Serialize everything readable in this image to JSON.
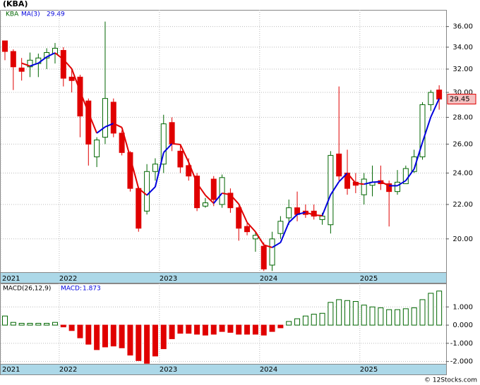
{
  "chart_data": [
    {
      "type": "candlestick",
      "title": "(KBA)",
      "name": "KBA",
      "up_color": "#006600",
      "down_color": "#e00000",
      "categories": [
        "2021",
        null,
        null,
        null,
        null,
        null,
        null,
        "2022",
        null,
        null,
        null,
        null,
        null,
        null,
        null,
        null,
        null,
        null,
        null,
        "2023",
        null,
        null,
        null,
        null,
        null,
        null,
        null,
        null,
        null,
        null,
        null,
        "2024",
        null,
        null,
        null,
        null,
        null,
        null,
        null,
        null,
        null,
        null,
        null,
        "2025",
        null,
        null,
        null,
        null,
        null,
        null,
        null,
        null,
        null
      ],
      "open": [
        34.6,
        33.6,
        32.1,
        32.2,
        32.5,
        33.0,
        33.4,
        33.7,
        31.3,
        31.3,
        29.3,
        25.1,
        26.5,
        29.2,
        26.8,
        25.4,
        23.0,
        21.6,
        24.1,
        24.6,
        27.6,
        25.5,
        24.5,
        23.8,
        21.9,
        23.6,
        22.0,
        22.7,
        21.8,
        20.7,
        20.0,
        19.6,
        18.6,
        20.3,
        21.2,
        21.8,
        21.6,
        21.6,
        21.1,
        20.8,
        25.3,
        24.0,
        23.4,
        22.6,
        23.2,
        23.5,
        23.3,
        22.8,
        23.3,
        24.1,
        25.1,
        29.0,
        30.2
      ],
      "high": [
        34.6,
        33.8,
        33.0,
        33.5,
        33.4,
        33.9,
        34.4,
        34.0,
        32.0,
        31.5,
        29.5,
        26.5,
        36.5,
        29.5,
        27.0,
        25.5,
        23.1,
        24.6,
        25.0,
        28.2,
        28.0,
        26.0,
        25.0,
        24.0,
        22.4,
        23.8,
        23.9,
        23.0,
        21.9,
        20.9,
        20.4,
        19.8,
        20.4,
        21.3,
        22.3,
        22.8,
        22.0,
        22.0,
        21.5,
        25.5,
        30.5,
        25.6,
        24.0,
        24.0,
        24.5,
        24.5,
        23.5,
        24.2,
        24.5,
        25.6,
        29.2,
        30.2,
        30.6
      ],
      "low": [
        32.8,
        30.2,
        31.0,
        31.3,
        31.3,
        32.0,
        32.5,
        30.5,
        30.0,
        26.5,
        24.5,
        24.4,
        26.0,
        26.5,
        25.2,
        22.8,
        20.4,
        21.4,
        23.5,
        24.0,
        25.5,
        24.0,
        23.5,
        21.6,
        21.8,
        21.9,
        21.8,
        21.5,
        19.9,
        20.2,
        19.3,
        18.3,
        18.3,
        20.0,
        20.8,
        21.0,
        21.2,
        21.1,
        20.8,
        20.3,
        23.5,
        22.6,
        22.7,
        22.0,
        22.5,
        22.9,
        20.7,
        22.6,
        23.3,
        24.0,
        24.9,
        28.5,
        28.6
      ],
      "close": [
        33.6,
        32.2,
        31.8,
        32.8,
        33.0,
        33.5,
        33.9,
        31.2,
        31.0,
        28.1,
        26.0,
        26.3,
        29.5,
        26.8,
        25.4,
        23.0,
        20.6,
        24.1,
        24.6,
        27.5,
        26.0,
        24.4,
        23.8,
        21.8,
        22.1,
        22.3,
        23.7,
        21.8,
        20.6,
        20.4,
        20.2,
        18.4,
        20.0,
        21.0,
        21.8,
        21.4,
        21.4,
        21.3,
        21.3,
        25.2,
        23.8,
        23.0,
        23.2,
        23.6,
        23.4,
        23.3,
        22.8,
        23.4,
        24.3,
        25.1,
        29.0,
        30.0,
        29.45
      ],
      "ma": {
        "name": "MA(3)",
        "color": "#0000dd",
        "down_color": "#e00000",
        "values": [
          null,
          null,
          32.53,
          32.27,
          32.53,
          33.1,
          33.47,
          32.87,
          32.03,
          30.1,
          28.37,
          26.8,
          27.27,
          27.53,
          27.23,
          25.07,
          23.0,
          22.57,
          23.1,
          25.4,
          26.03,
          25.97,
          24.73,
          23.33,
          22.57,
          22.07,
          22.7,
          22.6,
          22.03,
          20.93,
          20.4,
          19.67,
          19.53,
          19.8,
          20.93,
          21.4,
          21.53,
          21.37,
          21.33,
          22.6,
          23.43,
          24.0,
          23.33,
          23.27,
          23.4,
          23.43,
          23.17,
          23.17,
          23.5,
          24.27,
          26.13,
          28.03,
          29.49
        ]
      },
      "log_scale": true,
      "grid": true,
      "ylim": [
        18.24,
        37.7
      ],
      "yticks": [
        {
          "value": 20,
          "label": "20.00"
        },
        {
          "value": 22,
          "label": "22.00"
        },
        {
          "value": 24,
          "label": "24.00"
        },
        {
          "value": 26,
          "label": "26.00"
        },
        {
          "value": 28,
          "label": "28.00"
        },
        {
          "value": 30,
          "label": "30.00"
        },
        {
          "value": 32,
          "label": "32.00"
        },
        {
          "value": 34,
          "label": "34.00"
        },
        {
          "value": 36,
          "label": "36.00"
        }
      ]
    },
    {
      "type": "bar",
      "title": "MACD(26,12,9)",
      "name": "MACD:",
      "up_color": "#006600",
      "down_color": "#e00000",
      "categories": [
        "2021",
        null,
        null,
        null,
        null,
        null,
        null,
        "2022",
        null,
        null,
        null,
        null,
        null,
        null,
        null,
        null,
        null,
        null,
        null,
        "2023",
        null,
        null,
        null,
        null,
        null,
        null,
        null,
        null,
        null,
        null,
        null,
        "2024",
        null,
        null,
        null,
        null,
        null,
        null,
        null,
        null,
        null,
        null,
        null,
        "2025",
        null,
        null,
        null,
        null,
        null,
        null,
        null,
        null,
        null
      ],
      "values": [
        0.5,
        0.15,
        0.1,
        0.1,
        0.1,
        0.1,
        0.15,
        -0.1,
        -0.3,
        -0.7,
        -1.05,
        -1.35,
        -1.2,
        -1.15,
        -1.25,
        -1.65,
        -1.95,
        -2.1,
        -1.7,
        -1.3,
        -0.75,
        -0.45,
        -0.45,
        -0.5,
        -0.55,
        -0.5,
        -0.35,
        -0.4,
        -0.5,
        -0.5,
        -0.5,
        -0.55,
        -0.35,
        -0.15,
        0.2,
        0.35,
        0.5,
        0.6,
        0.65,
        1.25,
        1.4,
        1.35,
        1.3,
        1.1,
        1.0,
        0.95,
        0.85,
        0.85,
        0.9,
        0.95,
        1.4,
        1.75,
        1.873
      ],
      "grid": true,
      "ylim": [
        -2.13,
        2.29
      ],
      "yticks": [
        {
          "value": -2,
          "label": "-2.000"
        },
        {
          "value": -1,
          "label": "-1.000"
        },
        {
          "value": 0,
          "label": "0.000"
        },
        {
          "value": 1,
          "label": "1.000"
        }
      ]
    }
  ],
  "watermark": "© 12Stocks.com"
}
